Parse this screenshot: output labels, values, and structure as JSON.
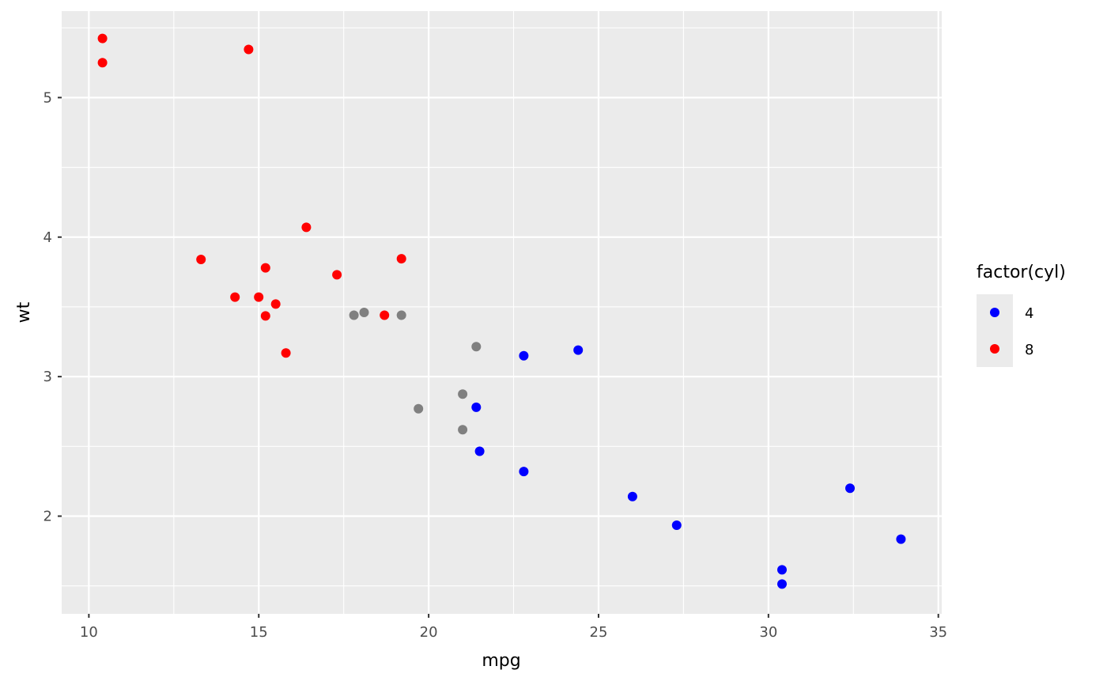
{
  "chart_data": {
    "type": "scatter",
    "xlabel": "mpg",
    "ylabel": "wt",
    "xlim": [
      9.2,
      35.1
    ],
    "ylim": [
      1.3,
      5.62
    ],
    "x_ticks": [
      10,
      15,
      20,
      25,
      30,
      35
    ],
    "y_ticks": [
      2,
      3,
      4,
      5
    ],
    "grid": true,
    "background": "#ebebeb",
    "gridline_color": "#ffffff",
    "legend": {
      "title": "factor(cyl)",
      "placement": "right",
      "entries": [
        {
          "label": "4",
          "color": "#0000ff"
        },
        {
          "label": "8",
          "color": "#ff0000"
        }
      ]
    },
    "series": [
      {
        "name": "4",
        "color": "#0000ff",
        "points": [
          [
            22.8,
            2.32
          ],
          [
            24.4,
            3.19
          ],
          [
            22.8,
            3.15
          ],
          [
            32.4,
            2.2
          ],
          [
            30.4,
            1.615
          ],
          [
            33.9,
            1.835
          ],
          [
            21.5,
            2.465
          ],
          [
            27.3,
            1.935
          ],
          [
            26.0,
            2.14
          ],
          [
            30.4,
            1.513
          ],
          [
            21.4,
            2.78
          ]
        ]
      },
      {
        "color": "#808080",
        "points": [
          [
            21.0,
            2.62
          ],
          [
            21.0,
            2.875
          ],
          [
            21.4,
            3.215
          ],
          [
            18.1,
            3.46
          ],
          [
            19.2,
            3.44
          ],
          [
            17.8,
            3.44
          ],
          [
            19.7,
            2.77
          ]
        ]
      },
      {
        "name": "8",
        "color": "#ff0000",
        "points": [
          [
            18.7,
            3.44
          ],
          [
            14.3,
            3.57
          ],
          [
            16.4,
            4.07
          ],
          [
            17.3,
            3.73
          ],
          [
            15.2,
            3.78
          ],
          [
            10.4,
            5.25
          ],
          [
            10.4,
            5.424
          ],
          [
            14.7,
            5.345
          ],
          [
            15.5,
            3.52
          ],
          [
            15.2,
            3.435
          ],
          [
            13.3,
            3.84
          ],
          [
            19.2,
            3.845
          ],
          [
            15.8,
            3.17
          ],
          [
            15.0,
            3.57
          ]
        ]
      }
    ]
  }
}
